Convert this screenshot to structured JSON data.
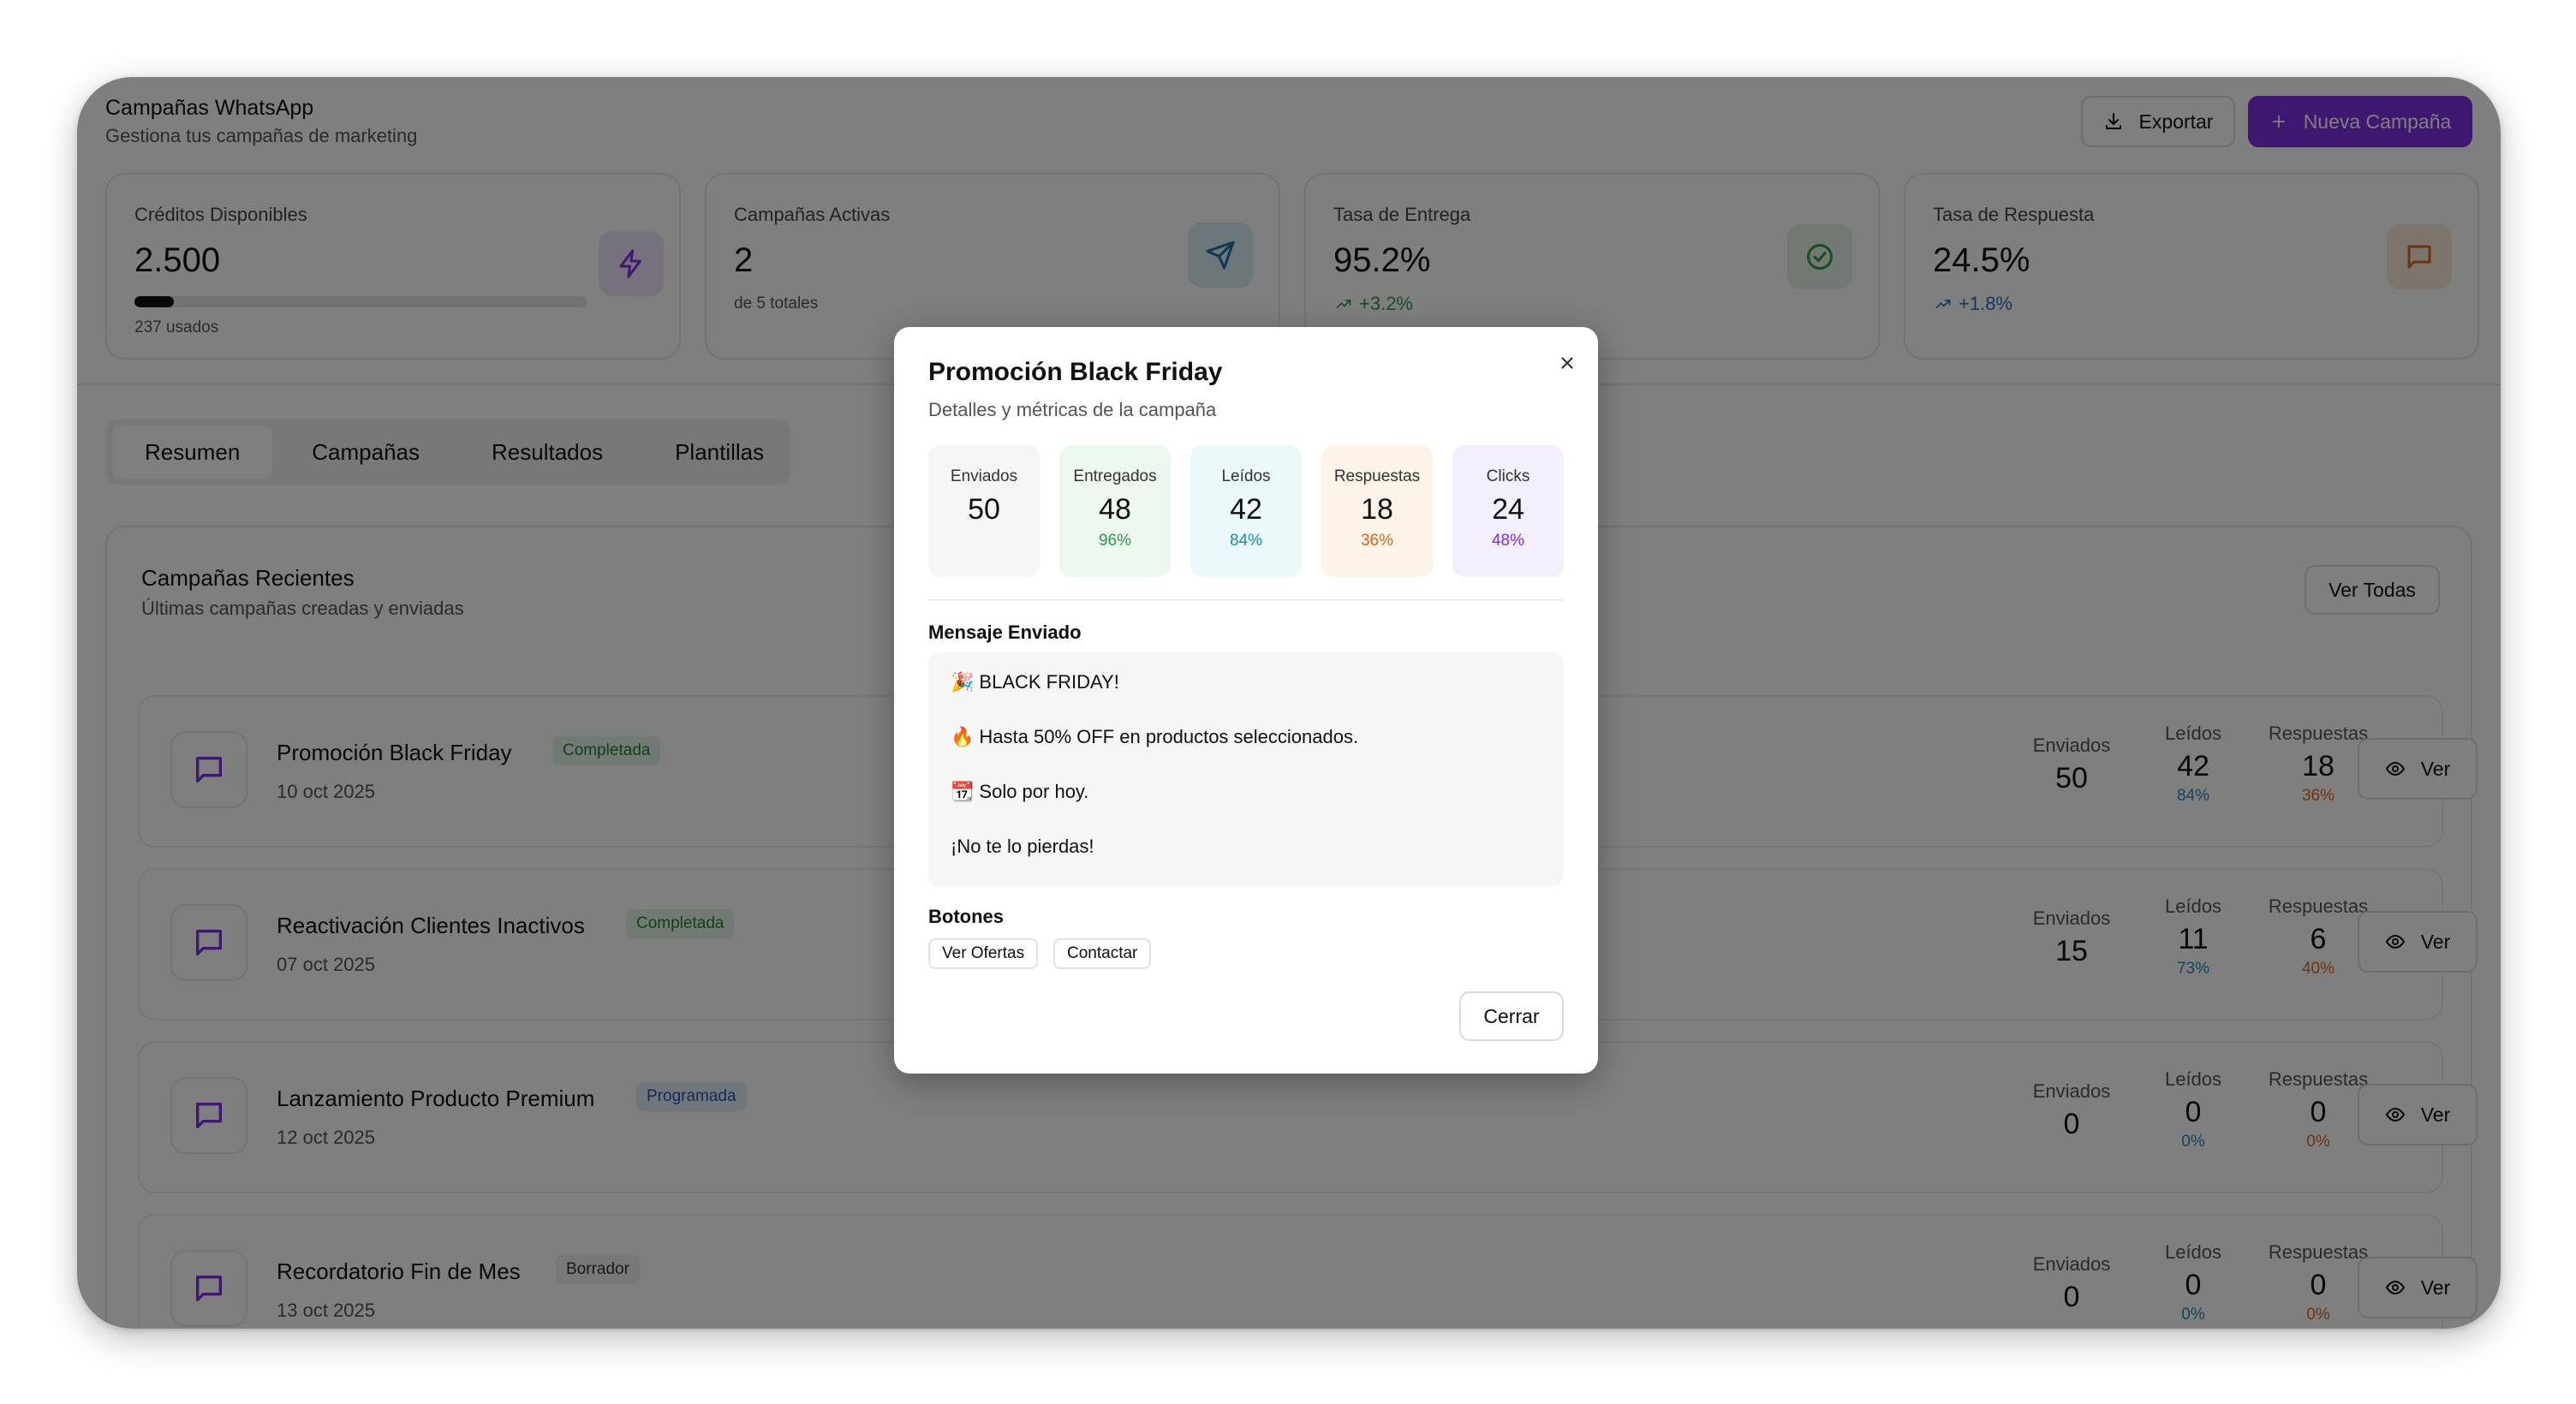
{
  "header": {
    "title": "Campañas WhatsApp",
    "subtitle": "Gestiona tus campañas de marketing",
    "export_label": "Exportar",
    "new_label": "Nueva Campaña"
  },
  "stats": [
    {
      "label": "Créditos Disponibles",
      "value": "2.500",
      "sub": "237 usados",
      "progress_fraction": 0.0866
    },
    {
      "label": "Campañas Activas",
      "value": "2",
      "sub": "de 5 totales"
    },
    {
      "label": "Tasa de Entrega",
      "value": "95.2%",
      "trend": "+3.2%"
    },
    {
      "label": "Tasa de Respuesta",
      "value": "24.5%",
      "trend": "+1.8%"
    }
  ],
  "tabs": [
    "Resumen",
    "Campañas",
    "Resultados",
    "Plantillas"
  ],
  "recent": {
    "title": "Campañas Recientes",
    "subtitle": "Últimas campañas creadas y enviadas",
    "view_all": "Ver Todas",
    "labels": {
      "sent": "Enviados",
      "read": "Leídos",
      "responses": "Respuestas",
      "view": "Ver"
    },
    "rows": [
      {
        "name": "Promoción Black Friday",
        "badge": "Completada",
        "date": "10 oct 2025",
        "sent": "50",
        "read": "42",
        "read_pct": "84%",
        "resp": "18",
        "resp_pct": "36%"
      },
      {
        "name": "Reactivación Clientes Inactivos",
        "badge": "Completada",
        "date": "07 oct 2025",
        "sent": "15",
        "read": "11",
        "read_pct": "73%",
        "resp": "6",
        "resp_pct": "40%"
      },
      {
        "name": "Lanzamiento Producto Premium",
        "badge": "Programada",
        "date": "12 oct 2025",
        "sent": "0",
        "read": "0",
        "read_pct": "0%",
        "resp": "0",
        "resp_pct": "0%"
      },
      {
        "name": "Recordatorio Fin de Mes",
        "badge": "Borrador",
        "date": "13 oct 2025",
        "sent": "0",
        "read": "0",
        "read_pct": "0%",
        "resp": "0",
        "resp_pct": "0%"
      }
    ]
  },
  "modal": {
    "title": "Promoción Black Friday",
    "subtitle": "Detalles y métricas de la campaña",
    "metrics": [
      {
        "label": "Enviados",
        "value": "50",
        "pct": ""
      },
      {
        "label": "Entregados",
        "value": "48",
        "pct": "96%"
      },
      {
        "label": "Leídos",
        "value": "42",
        "pct": "84%"
      },
      {
        "label": "Respuestas",
        "value": "18",
        "pct": "36%"
      },
      {
        "label": "Clicks",
        "value": "24",
        "pct": "48%"
      }
    ],
    "message_heading": "Mensaje Enviado",
    "message_lines": [
      {
        "emoji": "🎉",
        "text": "BLACK FRIDAY!"
      },
      {
        "emoji": "🔥",
        "text": "Hasta 50% OFF en productos seleccionados."
      },
      {
        "emoji": "📆",
        "text": "Solo por hoy."
      },
      {
        "emoji": "",
        "text": "¡No te lo pierdas!"
      }
    ],
    "buttons_heading": "Botones",
    "buttons": [
      "Ver Ofertas",
      "Contactar"
    ],
    "close_label": "Cerrar"
  },
  "colors": {
    "accent": "#7c2fe0",
    "success": "#2e9b4a",
    "info": "#2b6fb5",
    "teal": "#1f8ab0",
    "orange": "#d9661c"
  }
}
